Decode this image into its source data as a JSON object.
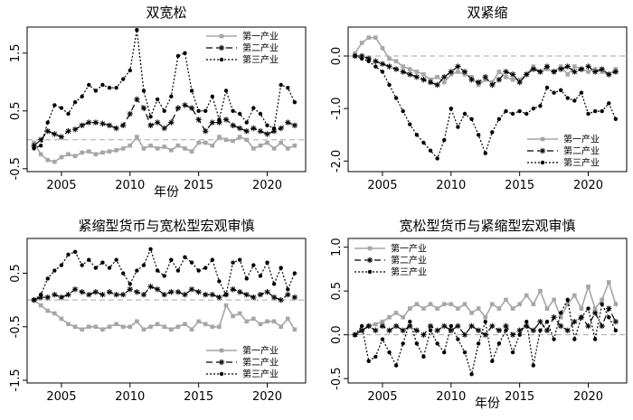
{
  "figure": {
    "xlabel": "年份",
    "legend_labels": [
      "第一产业",
      "第二产业",
      "第三产业"
    ],
    "colors": {
      "primary": "#a6a6a6",
      "secondary": "#000000",
      "tertiary": "#000000",
      "zero_line": "#a6a6a6"
    }
  },
  "chart_data": [
    {
      "type": "line",
      "title": "双宽松",
      "xlabel": "年份",
      "xlim": [
        2002.5,
        2022.8
      ],
      "ylim": [
        -0.55,
        1.95
      ],
      "yticks": [
        -0.5,
        0.5,
        1.5
      ],
      "ytick_labels": [
        "-0.5",
        "0.5",
        "1.5"
      ],
      "xticks": [
        2005,
        2010,
        2015,
        2020
      ],
      "xtick_labels": [
        "2005",
        "2010",
        "2015",
        "2020"
      ],
      "legend_position": "top-right",
      "x": [
        2003.0,
        2003.5,
        2004.0,
        2004.5,
        2005.0,
        2005.5,
        2006.0,
        2006.5,
        2007.0,
        2007.5,
        2008.0,
        2008.5,
        2009.0,
        2009.5,
        2010.0,
        2010.5,
        2011.0,
        2011.5,
        2012.0,
        2012.5,
        2013.0,
        2013.5,
        2014.0,
        2014.5,
        2015.0,
        2015.5,
        2016.0,
        2016.5,
        2017.0,
        2017.5,
        2018.0,
        2018.5,
        2019.0,
        2019.5,
        2020.0,
        2020.5,
        2021.0,
        2021.5,
        2022.0
      ],
      "series": [
        {
          "name": "第一产业",
          "values": [
            -0.05,
            -0.25,
            -0.35,
            -0.38,
            -0.3,
            -0.25,
            -0.28,
            -0.22,
            -0.2,
            -0.25,
            -0.22,
            -0.2,
            -0.18,
            -0.15,
            -0.1,
            0.05,
            -0.15,
            -0.1,
            -0.15,
            -0.12,
            -0.18,
            -0.1,
            -0.15,
            -0.2,
            -0.05,
            -0.05,
            -0.1,
            0.05,
            0.0,
            -0.02,
            0.05,
            0.0,
            -0.15,
            -0.1,
            -0.05,
            -0.15,
            -0.05,
            -0.15,
            -0.1
          ]
        },
        {
          "name": "第二产业",
          "values": [
            -0.1,
            0.0,
            0.15,
            0.1,
            0.05,
            0.15,
            0.18,
            0.25,
            0.3,
            0.3,
            0.28,
            0.25,
            0.2,
            0.25,
            0.45,
            0.7,
            0.55,
            0.25,
            0.3,
            0.2,
            0.3,
            0.55,
            0.6,
            0.55,
            0.35,
            0.15,
            0.3,
            0.3,
            0.35,
            0.25,
            0.2,
            0.15,
            0.2,
            0.15,
            0.1,
            0.15,
            0.2,
            0.3,
            0.25
          ]
        },
        {
          "name": "第三产业",
          "values": [
            -0.15,
            -0.1,
            0.3,
            0.6,
            0.55,
            0.45,
            0.65,
            0.75,
            0.95,
            0.85,
            0.95,
            0.9,
            0.9,
            1.05,
            1.2,
            1.9,
            0.85,
            0.4,
            0.7,
            0.5,
            0.75,
            1.45,
            1.5,
            0.85,
            0.5,
            0.5,
            0.75,
            0.35,
            0.85,
            0.5,
            0.45,
            0.3,
            0.55,
            0.45,
            0.25,
            0.2,
            0.95,
            0.9,
            0.65
          ]
        }
      ]
    },
    {
      "type": "line",
      "title": "双紧缩",
      "xlabel": "",
      "xlim": [
        2002.5,
        2022.8
      ],
      "ylim": [
        -2.2,
        0.55
      ],
      "yticks": [
        -2.0,
        -1.0,
        0.0
      ],
      "ytick_labels": [
        "-2.0",
        "-1.0",
        "0.0"
      ],
      "xticks": [
        2005,
        2010,
        2015,
        2020
      ],
      "xtick_labels": [
        "2005",
        "2010",
        "2015",
        "2020"
      ],
      "legend_position": "bottom-right",
      "x": [
        2003.0,
        2003.5,
        2004.0,
        2004.5,
        2005.0,
        2005.5,
        2006.0,
        2006.5,
        2007.0,
        2007.5,
        2008.0,
        2008.5,
        2009.0,
        2009.5,
        2010.0,
        2010.5,
        2011.0,
        2011.5,
        2012.0,
        2012.5,
        2013.0,
        2013.5,
        2014.0,
        2014.5,
        2015.0,
        2015.5,
        2016.0,
        2016.5,
        2017.0,
        2017.5,
        2018.0,
        2018.5,
        2019.0,
        2019.5,
        2020.0,
        2020.5,
        2021.0,
        2021.5,
        2022.0
      ],
      "series": [
        {
          "name": "第一产业",
          "values": [
            0.05,
            0.25,
            0.35,
            0.35,
            0.15,
            -0.05,
            -0.1,
            -0.2,
            -0.25,
            -0.3,
            -0.35,
            -0.45,
            -0.4,
            -0.5,
            -0.35,
            -0.3,
            -0.35,
            -0.4,
            -0.55,
            -0.45,
            -0.5,
            -0.3,
            -0.4,
            -0.45,
            -0.45,
            -0.35,
            -0.2,
            -0.3,
            -0.25,
            -0.3,
            -0.2,
            -0.35,
            -0.2,
            -0.25,
            -0.3,
            -0.25,
            -0.3,
            -0.35,
            -0.25
          ]
        },
        {
          "name": "第二产业",
          "values": [
            0.0,
            0.0,
            -0.05,
            -0.1,
            -0.15,
            -0.2,
            -0.25,
            -0.3,
            -0.35,
            -0.4,
            -0.45,
            -0.5,
            -0.55,
            -0.4,
            -0.3,
            -0.2,
            -0.3,
            -0.45,
            -0.5,
            -0.4,
            -0.55,
            -0.45,
            -0.3,
            -0.35,
            -0.5,
            -0.35,
            -0.25,
            -0.3,
            -0.2,
            -0.3,
            -0.25,
            -0.2,
            -0.3,
            -0.25,
            -0.2,
            -0.3,
            -0.25,
            -0.35,
            -0.3
          ]
        },
        {
          "name": "第三产业",
          "values": [
            0.0,
            -0.05,
            -0.1,
            -0.2,
            -0.3,
            -0.55,
            -0.8,
            -1.05,
            -1.3,
            -1.5,
            -1.65,
            -1.8,
            -1.95,
            -1.6,
            -1.0,
            -1.35,
            -1.1,
            -1.2,
            -1.5,
            -1.85,
            -1.45,
            -1.2,
            -1.05,
            -1.1,
            -1.05,
            -1.1,
            -1.0,
            -0.95,
            -0.6,
            -0.7,
            -0.65,
            -0.8,
            -0.85,
            -0.7,
            -1.1,
            -1.05,
            -1.05,
            -0.9,
            -1.2
          ]
        }
      ]
    },
    {
      "type": "line",
      "title": "紧缩型货币与宽松型宏观审慎",
      "xlabel": "",
      "xlim": [
        2002.5,
        2022.8
      ],
      "ylim": [
        -1.55,
        1.15
      ],
      "yticks": [
        -1.5,
        -0.5,
        0.5
      ],
      "ytick_labels": [
        "-1.5",
        "-0.5",
        "0.5"
      ],
      "xticks": [
        2005,
        2010,
        2015,
        2020
      ],
      "xtick_labels": [
        "2005",
        "2010",
        "2015",
        "2020"
      ],
      "legend_position": "bottom-right",
      "x": [
        2003.0,
        2003.5,
        2004.0,
        2004.5,
        2005.0,
        2005.5,
        2006.0,
        2006.5,
        2007.0,
        2007.5,
        2008.0,
        2008.5,
        2009.0,
        2009.5,
        2010.0,
        2010.5,
        2011.0,
        2011.5,
        2012.0,
        2012.5,
        2013.0,
        2013.5,
        2014.0,
        2014.5,
        2015.0,
        2015.5,
        2016.0,
        2016.5,
        2017.0,
        2017.5,
        2018.0,
        2018.5,
        2019.0,
        2019.5,
        2020.0,
        2020.5,
        2021.0,
        2021.5,
        2022.0
      ],
      "series": [
        {
          "name": "第一产业",
          "values": [
            0.0,
            -0.1,
            -0.2,
            -0.25,
            -0.35,
            -0.45,
            -0.5,
            -0.55,
            -0.5,
            -0.5,
            -0.55,
            -0.5,
            -0.45,
            -0.5,
            -0.5,
            -0.4,
            -0.55,
            -0.5,
            -0.45,
            -0.5,
            -0.55,
            -0.5,
            -0.45,
            -0.55,
            -0.4,
            -0.45,
            -0.5,
            -0.5,
            -0.1,
            -0.3,
            -0.25,
            -0.4,
            -0.35,
            -0.45,
            -0.4,
            -0.4,
            -0.5,
            -0.35,
            -0.55
          ]
        },
        {
          "name": "第二产业",
          "values": [
            0.0,
            0.05,
            0.05,
            0.1,
            0.05,
            0.1,
            0.2,
            0.15,
            0.1,
            0.15,
            0.1,
            0.15,
            0.1,
            0.1,
            0.2,
            0.15,
            0.1,
            0.25,
            0.2,
            0.1,
            0.15,
            0.15,
            0.1,
            0.2,
            0.15,
            0.1,
            0.1,
            0.05,
            0.1,
            0.2,
            0.15,
            0.1,
            0.05,
            0.1,
            0.15,
            0.05,
            0.0,
            0.1,
            0.05
          ]
        },
        {
          "name": "第三产业",
          "values": [
            0.0,
            0.1,
            0.4,
            0.55,
            0.65,
            0.85,
            0.9,
            0.65,
            0.75,
            0.6,
            0.7,
            0.6,
            0.75,
            0.5,
            0.3,
            0.55,
            0.65,
            0.95,
            0.55,
            0.45,
            0.75,
            0.55,
            0.8,
            0.7,
            0.55,
            0.6,
            0.75,
            0.35,
            0.1,
            0.7,
            0.75,
            0.4,
            0.65,
            0.45,
            0.7,
            0.3,
            0.6,
            0.2,
            0.5
          ]
        }
      ]
    },
    {
      "type": "line",
      "title": "宽松型货币与紧缩型宏观审慎",
      "xlabel": "年份",
      "xlim": [
        2002.5,
        2022.8
      ],
      "ylim": [
        -0.55,
        1.1
      ],
      "yticks": [
        -0.5,
        0.0,
        0.5,
        1.0
      ],
      "ytick_labels": [
        "-0.5",
        "0.0",
        "0.5",
        "1.0"
      ],
      "xticks": [
        2005,
        2010,
        2015,
        2020
      ],
      "xtick_labels": [
        "2005",
        "2010",
        "2015",
        "2020"
      ],
      "legend_position": "top-left",
      "x": [
        2003.0,
        2003.5,
        2004.0,
        2004.5,
        2005.0,
        2005.5,
        2006.0,
        2006.5,
        2007.0,
        2007.5,
        2008.0,
        2008.5,
        2009.0,
        2009.5,
        2010.0,
        2010.5,
        2011.0,
        2011.5,
        2012.0,
        2012.5,
        2013.0,
        2013.5,
        2014.0,
        2014.5,
        2015.0,
        2015.5,
        2016.0,
        2016.5,
        2017.0,
        2017.5,
        2018.0,
        2018.5,
        2019.0,
        2019.5,
        2020.0,
        2020.5,
        2021.0,
        2021.5,
        2022.0
      ],
      "series": [
        {
          "name": "第一产业",
          "values": [
            0.0,
            0.05,
            0.1,
            0.12,
            0.15,
            0.2,
            0.25,
            0.2,
            0.3,
            0.35,
            0.3,
            0.35,
            0.3,
            0.35,
            0.35,
            0.3,
            0.35,
            0.25,
            0.3,
            0.2,
            0.35,
            0.3,
            0.4,
            0.3,
            0.35,
            0.45,
            0.35,
            0.5,
            0.3,
            0.4,
            0.2,
            0.35,
            0.45,
            0.3,
            0.55,
            0.3,
            0.4,
            0.6,
            0.35
          ]
        },
        {
          "name": "第二产业",
          "values": [
            0.0,
            0.05,
            0.1,
            0.05,
            0.1,
            0.05,
            0.1,
            0.05,
            0.1,
            0.05,
            0.0,
            0.1,
            0.05,
            0.1,
            0.05,
            0.1,
            0.0,
            0.1,
            0.05,
            0.0,
            0.1,
            0.05,
            0.1,
            0.0,
            0.05,
            0.1,
            0.05,
            0.15,
            0.05,
            0.2,
            0.1,
            0.05,
            0.15,
            0.2,
            0.1,
            0.25,
            0.1,
            0.3,
            0.15
          ]
        },
        {
          "name": "第三产业",
          "values": [
            0.0,
            0.1,
            -0.3,
            -0.25,
            -0.05,
            -0.2,
            -0.35,
            -0.1,
            0.15,
            -0.1,
            -0.25,
            0.05,
            -0.1,
            -0.2,
            0.1,
            -0.05,
            -0.2,
            -0.45,
            -0.1,
            0.15,
            -0.3,
            -0.1,
            0.05,
            -0.2,
            0.0,
            0.15,
            -0.35,
            0.05,
            0.15,
            -0.05,
            0.25,
            0.4,
            -0.05,
            0.2,
            0.3,
            -0.05,
            0.35,
            0.2,
            0.05
          ]
        }
      ]
    }
  ]
}
